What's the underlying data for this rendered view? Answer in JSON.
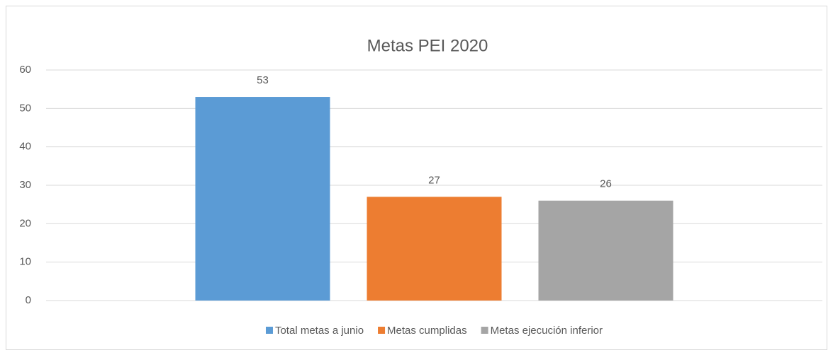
{
  "chart_data": {
    "type": "bar",
    "title": "Metas PEI 2020",
    "categories": [
      null
    ],
    "series": [
      {
        "name": "Total metas a junio",
        "color": "#5b9bd5",
        "values": [
          53
        ]
      },
      {
        "name": "Metas cumplidas",
        "color": "#ed7d31",
        "values": [
          27
        ]
      },
      {
        "name": "Metas ejecución inferior",
        "color": "#a5a5a5",
        "values": [
          26
        ]
      }
    ],
    "ylim": [
      0,
      60
    ],
    "yticks": [
      0,
      10,
      20,
      30,
      40,
      50,
      60
    ],
    "grid": true,
    "legend": "bottom",
    "data_labels": true
  }
}
